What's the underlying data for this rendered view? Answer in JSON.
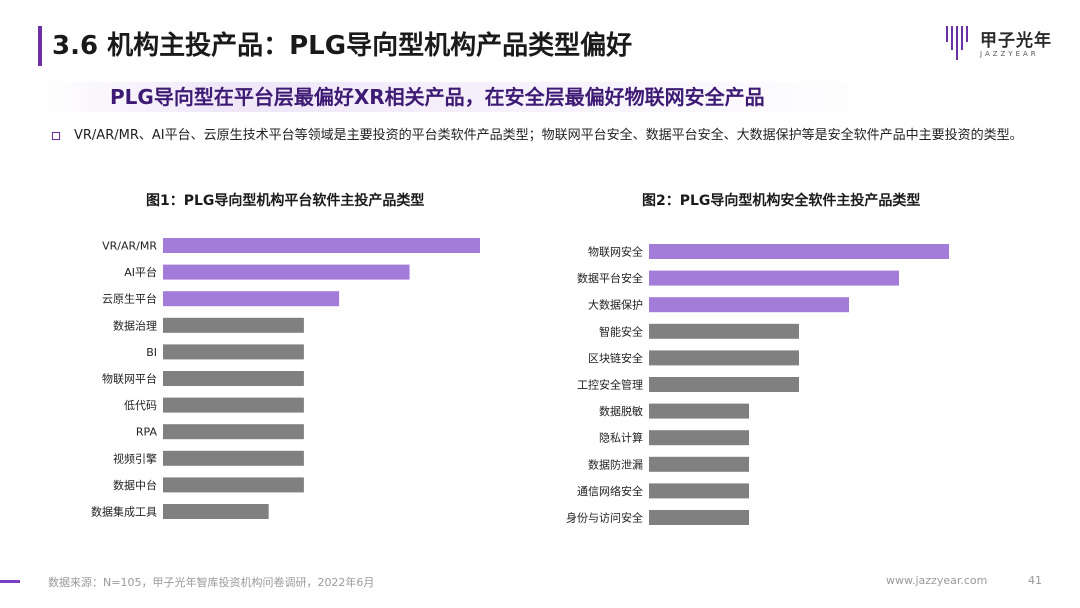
{
  "header": {
    "title": "3.6 机构主投产品：PLG导向型机构产品类型偏好",
    "logo_cn": "甲子光年",
    "logo_en": "JAZZYEAR"
  },
  "subtitle": "PLG导向型在平台层最偏好XR相关产品，在安全层最偏好物联网安全产品",
  "bullet": "VR/AR/MR、AI平台、云原生技术平台等领域是主要投资的平台类软件产品类型；物联网平台安全、数据平台安全、大数据保护等是安全软件产品中主要投资的类型。",
  "colors": {
    "accent": "#6b2fa8",
    "highlight": "#a37bd8",
    "other": "#808080"
  },
  "chart_data": [
    {
      "type": "bar",
      "orientation": "horizontal",
      "title": "图1：PLG导向型机构平台软件主投产品类型",
      "categories": [
        "VR/AR/MR",
        "AI平台",
        "云原生平台",
        "数据治理",
        "BI",
        "物联网平台",
        "低代码",
        "RPA",
        "视频引擎",
        "数据中台",
        "数据集成工具"
      ],
      "values": [
        9,
        7,
        5,
        4,
        4,
        4,
        4,
        4,
        4,
        4,
        3
      ],
      "highlight_count": 3,
      "xlim": [
        0,
        9
      ]
    },
    {
      "type": "bar",
      "orientation": "horizontal",
      "title": "图2：PLG导向型机构安全软件主投产品类型",
      "categories": [
        "物联网安全",
        "数据平台安全",
        "大数据保护",
        "智能安全",
        "区块链安全",
        "工控安全管理",
        "数据脱敏",
        "隐私计算",
        "数据防泄漏",
        "通信网络安全",
        "身份与访问安全"
      ],
      "values": [
        6,
        5,
        4,
        3,
        3,
        3,
        2,
        2,
        2,
        2,
        2
      ],
      "highlight_count": 3,
      "xlim": [
        0,
        6
      ]
    }
  ],
  "footer": {
    "source": "数据来源：N=105，甲子光年智库投资机构问卷调研，2022年6月",
    "url": "www.jazzyear.com",
    "page": "41"
  }
}
